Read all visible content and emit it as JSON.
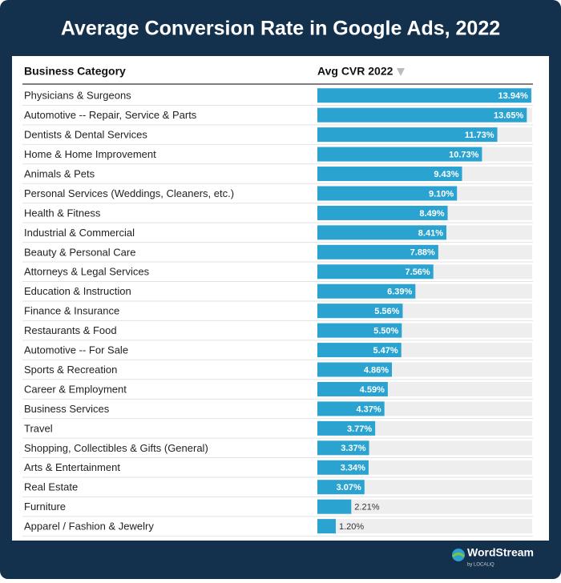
{
  "chart_data": {
    "type": "bar",
    "orientation": "horizontal",
    "title": "Average Conversion Rate in Google Ads, 2022",
    "column_headers": [
      "Business Category",
      "Avg CVR 2022"
    ],
    "categories": [
      "Physicians & Surgeons",
      "Automotive -- Repair, Service & Parts",
      "Dentists & Dental Services",
      "Home & Home Improvement",
      "Animals & Pets",
      "Personal Services (Weddings, Cleaners, etc.)",
      "Health & Fitness",
      "Industrial & Commercial",
      "Beauty & Personal Care",
      "Attorneys & Legal Services",
      "Education & Instruction",
      "Finance & Insurance",
      "Restaurants & Food",
      "Automotive -- For Sale",
      "Sports & Recreation",
      "Career & Employment",
      "Business Services",
      "Travel",
      "Shopping, Collectibles & Gifts (General)",
      "Arts & Entertainment",
      "Real Estate",
      "Furniture",
      "Apparel / Fashion & Jewelry"
    ],
    "values": [
      13.94,
      13.65,
      11.73,
      10.73,
      9.43,
      9.1,
      8.49,
      8.41,
      7.88,
      7.56,
      6.39,
      5.56,
      5.5,
      5.47,
      4.86,
      4.59,
      4.37,
      3.77,
      3.37,
      3.34,
      3.07,
      2.21,
      1.2
    ],
    "value_labels": [
      "13.94%",
      "13.65%",
      "11.73%",
      "10.73%",
      "9.43%",
      "9.10%",
      "8.49%",
      "8.41%",
      "7.88%",
      "7.56%",
      "6.39%",
      "5.56%",
      "5.50%",
      "5.47%",
      "4.86%",
      "4.59%",
      "4.37%",
      "3.77%",
      "3.37%",
      "3.34%",
      "3.07%",
      "2.21%",
      "1.20%"
    ],
    "xlim": [
      0,
      14
    ],
    "color": "#2aa3d0",
    "footer": {
      "brand": "WordStream",
      "byline": "by LOCALiQ"
    }
  }
}
